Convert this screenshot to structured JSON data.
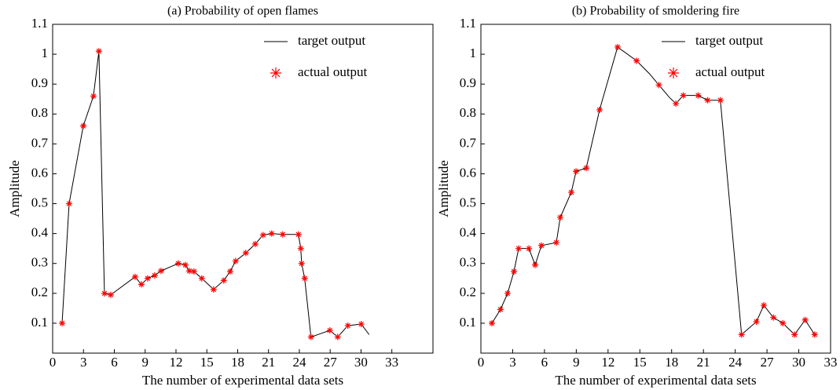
{
  "chart_data": [
    {
      "type": "line",
      "title": "(a) Probability of open flames",
      "xlabel": "The number of experimental data sets",
      "ylabel": "Amplitude",
      "xlim": [
        0,
        37
      ],
      "ylim": [
        0,
        1.1
      ],
      "xticks": [
        0,
        3,
        6,
        9,
        12,
        15,
        18,
        21,
        24,
        27,
        30,
        33
      ],
      "yticks": [
        0.1,
        0.2,
        0.3,
        0.4,
        0.5,
        0.6,
        0.7,
        0.8,
        0.9,
        1,
        1.1
      ],
      "legend": "upper right",
      "series": [
        {
          "name": "target output",
          "color": "#000000",
          "line": true,
          "x": [
            0.92,
            1.6,
            2.98,
            3.97,
            4.5,
            5.04,
            5.65,
            8.02,
            8.63,
            9.24,
            9.93,
            10.54,
            12.22,
            12.91,
            13.29,
            13.75,
            14.51,
            15.66,
            16.65,
            17.27,
            17.8,
            18.79,
            19.71,
            20.47,
            21.31,
            22.38,
            23.91,
            24.14,
            24.22,
            24.52,
            25.13,
            26.97,
            27.73,
            28.72,
            30.02,
            30.79
          ],
          "values": [
            0.1,
            0.5,
            0.76,
            0.86,
            1.01,
            0.2,
            0.195,
            0.255,
            0.23,
            0.25,
            0.26,
            0.275,
            0.3,
            0.295,
            0.275,
            0.273,
            0.25,
            0.213,
            0.243,
            0.273,
            0.308,
            0.335,
            0.365,
            0.395,
            0.4,
            0.397,
            0.397,
            0.35,
            0.3,
            0.25,
            0.054,
            0.076,
            0.054,
            0.092,
            0.097,
            0.062
          ]
        },
        {
          "name": "actual output",
          "color": "#ff0000",
          "line": false,
          "marker": "*",
          "x": [
            0.92,
            1.6,
            2.98,
            3.97,
            4.5,
            5.04,
            5.65,
            8.02,
            8.63,
            9.24,
            9.93,
            10.54,
            12.22,
            12.91,
            13.29,
            13.75,
            14.51,
            15.66,
            16.65,
            17.27,
            17.8,
            18.79,
            19.71,
            20.47,
            21.31,
            22.38,
            23.91,
            24.14,
            24.22,
            24.52,
            25.13,
            26.97,
            27.73,
            28.72,
            30.02
          ],
          "values": [
            0.1,
            0.5,
            0.76,
            0.86,
            1.01,
            0.2,
            0.195,
            0.255,
            0.23,
            0.25,
            0.26,
            0.275,
            0.3,
            0.295,
            0.275,
            0.273,
            0.25,
            0.213,
            0.243,
            0.273,
            0.308,
            0.335,
            0.365,
            0.395,
            0.4,
            0.397,
            0.397,
            0.35,
            0.3,
            0.25,
            0.054,
            0.076,
            0.054,
            0.092,
            0.097
          ]
        }
      ]
    },
    {
      "type": "line",
      "title": "(b) Probability of smoldering fire",
      "xlabel": "The number of experimental data sets",
      "ylabel": "Amplitude",
      "xlim": [
        0,
        33
      ],
      "ylim": [
        0,
        1.1
      ],
      "xticks": [
        0,
        3,
        6,
        9,
        12,
        15,
        18,
        21,
        24,
        27,
        30,
        33
      ],
      "yticks": [
        0.1,
        0.2,
        0.3,
        0.4,
        0.5,
        0.6,
        0.7,
        0.8,
        0.9,
        1,
        1.1
      ],
      "legend": "upper right",
      "series": [
        {
          "name": "target output",
          "color": "#000000",
          "line": true,
          "x": [
            1.04,
            1.85,
            2.52,
            3.12,
            3.56,
            4.53,
            5.12,
            5.71,
            7.12,
            7.49,
            8.53,
            8.98,
            9.94,
            11.2,
            12.9,
            14.7,
            15.9,
            16.8,
            17.8,
            18.4,
            19.1,
            20.5,
            21.4,
            22.6,
            24.6,
            26.0,
            26.7,
            27.6,
            28.5,
            29.6,
            30.6,
            31.5
          ],
          "values": [
            0.1,
            0.146,
            0.2,
            0.273,
            0.35,
            0.35,
            0.295,
            0.36,
            0.37,
            0.454,
            0.538,
            0.608,
            0.619,
            0.814,
            1.024,
            0.978,
            0.935,
            0.897,
            0.855,
            0.835,
            0.862,
            0.862,
            0.846,
            0.846,
            0.062,
            0.105,
            0.16,
            0.119,
            0.1,
            0.062,
            0.111,
            0.062
          ]
        },
        {
          "name": "actual output",
          "color": "#ff0000",
          "line": false,
          "marker": "*",
          "x": [
            1.04,
            1.85,
            2.52,
            3.12,
            3.56,
            4.53,
            5.12,
            5.71,
            7.12,
            7.49,
            8.53,
            8.98,
            9.94,
            11.2,
            12.9,
            14.7,
            16.8,
            18.4,
            19.1,
            20.5,
            21.4,
            22.6,
            24.6,
            26.0,
            26.7,
            27.6,
            28.5,
            29.6,
            30.6,
            31.5
          ],
          "values": [
            0.1,
            0.146,
            0.2,
            0.273,
            0.35,
            0.35,
            0.295,
            0.36,
            0.37,
            0.454,
            0.538,
            0.608,
            0.619,
            0.814,
            1.024,
            0.978,
            0.897,
            0.835,
            0.862,
            0.862,
            0.846,
            0.846,
            0.062,
            0.105,
            0.16,
            0.119,
            0.1,
            0.062,
            0.111,
            0.062
          ]
        }
      ]
    }
  ]
}
